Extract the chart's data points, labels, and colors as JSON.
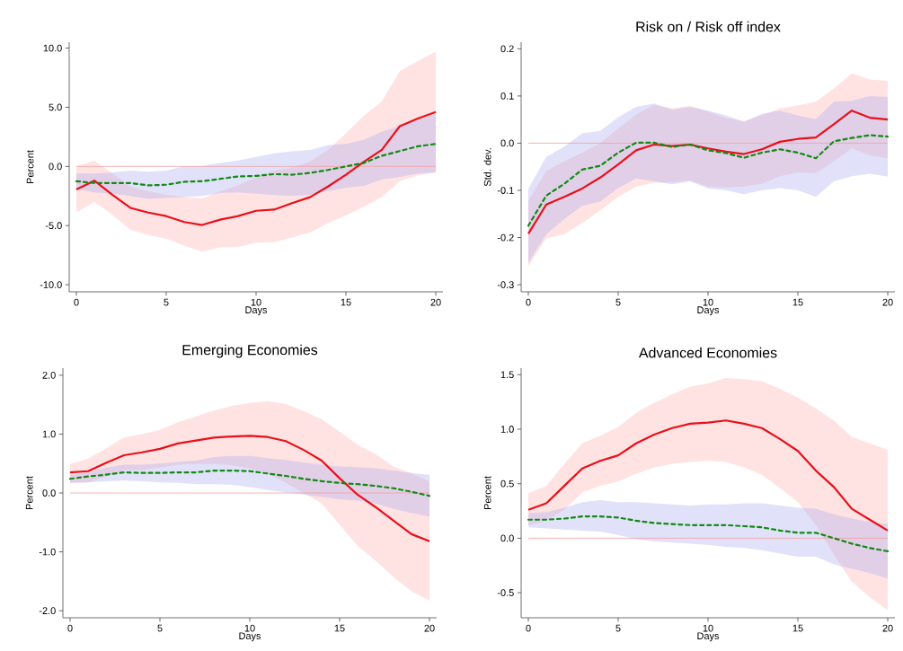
{
  "chart_data": [
    {
      "type": "line",
      "xlabel": "Days",
      "ylabel": "Percent",
      "xlim": [
        -0.4,
        20.4
      ],
      "ylim": [
        -10.6,
        10.5
      ],
      "xticks": [
        0,
        5,
        10,
        15,
        20
      ],
      "yticks": [
        {
          "value": -10,
          "label": "-10.0"
        },
        {
          "value": -5,
          "label": "-5.0"
        },
        {
          "value": 0,
          "label": "0.0"
        },
        {
          "value": 5,
          "label": "5.0"
        },
        {
          "value": 10,
          "label": "10.0"
        }
      ],
      "ref_lines": [
        {
          "axis": "y",
          "value": 0,
          "color": "#f4a0a0"
        }
      ],
      "x": [
        0,
        1,
        2,
        3,
        4,
        5,
        6,
        7,
        8,
        9,
        10,
        11,
        12,
        13,
        14,
        15,
        16,
        17,
        18,
        19,
        20
      ],
      "series": [
        {
          "color": "#e8101a",
          "line_style": "solid",
          "values": [
            -1.95,
            -1.2,
            -2.4,
            -3.5,
            -3.9,
            -4.2,
            -4.7,
            -4.95,
            -4.5,
            -4.2,
            -3.75,
            -3.65,
            -3.1,
            -2.6,
            -1.7,
            -0.7,
            0.4,
            1.4,
            3.4,
            4.05,
            4.6
          ],
          "upper": [
            0,
            0.5,
            -0.6,
            -1.7,
            -2.1,
            -2.4,
            -2.6,
            -2.7,
            -2.1,
            -1.6,
            -0.9,
            -0.35,
            -0.1,
            0.4,
            1.4,
            2.8,
            4.3,
            5.5,
            8.05,
            8.9,
            9.7
          ],
          "lower": [
            -3.9,
            -3.0,
            -4.1,
            -5.35,
            -5.8,
            -6.1,
            -6.7,
            -7.2,
            -6.85,
            -6.8,
            -6.45,
            -6.4,
            -6.0,
            -5.6,
            -4.8,
            -4.15,
            -3.4,
            -2.6,
            -1.25,
            -0.75,
            -0.5
          ]
        },
        {
          "color": "#128a12",
          "line_style": "dashed",
          "values": [
            -1.25,
            -1.4,
            -1.4,
            -1.4,
            -1.6,
            -1.55,
            -1.3,
            -1.25,
            -1.05,
            -0.85,
            -0.8,
            -0.65,
            -0.7,
            -0.55,
            -0.3,
            0,
            0.3,
            0.9,
            1.3,
            1.7,
            1.9
          ],
          "upper": [
            -0.6,
            -0.6,
            -0.5,
            -0.35,
            -0.45,
            -0.35,
            0,
            0.05,
            0.3,
            0.5,
            0.8,
            1.1,
            1.27,
            1.4,
            1.8,
            1.9,
            2.25,
            2.95,
            3.4,
            3.95,
            4.45
          ],
          "lower": [
            -1.9,
            -2.2,
            -2.3,
            -2.5,
            -2.75,
            -2.65,
            -2.6,
            -2.5,
            -2.25,
            -2.2,
            -2.3,
            -2.42,
            -2.5,
            -2.4,
            -2.1,
            -1.8,
            -1.65,
            -1.1,
            -0.88,
            -0.6,
            -0.5
          ]
        }
      ]
    },
    {
      "type": "line",
      "title": "Risk on / Risk off index",
      "xlabel": "Days",
      "ylabel": "Std. dev.",
      "xlim": [
        -0.4,
        20.4
      ],
      "ylim": [
        -0.315,
        0.214
      ],
      "xticks": [
        0,
        5,
        10,
        15,
        20
      ],
      "yticks": [
        -0.3,
        -0.2,
        -0.1,
        {
          "value": 0,
          "label": "0.0"
        },
        0.1,
        0.2
      ],
      "ref_lines": [
        {
          "axis": "y",
          "value": 0,
          "color": "#f4a0a0"
        }
      ],
      "x": [
        0,
        1,
        2,
        3,
        4,
        5,
        6,
        7,
        8,
        9,
        10,
        11,
        12,
        13,
        14,
        15,
        16,
        17,
        18,
        19,
        20
      ],
      "series": [
        {
          "color": "#e8101a",
          "line_style": "solid",
          "values": [
            -0.192,
            -0.13,
            -0.114,
            -0.096,
            -0.073,
            -0.045,
            -0.015,
            -0.003,
            -0.006,
            -0.003,
            -0.011,
            -0.018,
            -0.023,
            -0.013,
            0.003,
            0.009,
            0.012,
            0.04,
            0.069,
            0.054,
            0.05
          ],
          "upper": [
            -0.122,
            -0.059,
            -0.038,
            -0.02,
            0,
            0.031,
            0.061,
            0.081,
            0.074,
            0.079,
            0.067,
            0.053,
            0.047,
            0.059,
            0.074,
            0.08,
            0.088,
            0.116,
            0.148,
            0.135,
            0.132
          ],
          "lower": [
            -0.261,
            -0.202,
            -0.193,
            -0.169,
            -0.143,
            -0.114,
            -0.092,
            -0.084,
            -0.083,
            -0.079,
            -0.092,
            -0.094,
            -0.092,
            -0.086,
            -0.07,
            -0.062,
            -0.064,
            -0.038,
            -0.011,
            -0.026,
            -0.032
          ]
        },
        {
          "color": "#128a12",
          "line_style": "dashed",
          "values": [
            -0.175,
            -0.111,
            -0.086,
            -0.056,
            -0.048,
            -0.02,
            0.001,
            0.001,
            -0.008,
            -0.003,
            -0.015,
            -0.021,
            -0.031,
            -0.02,
            -0.013,
            -0.02,
            -0.032,
            0.004,
            0.011,
            0.017,
            0.014
          ],
          "upper": [
            -0.096,
            -0.029,
            -0.007,
            0.021,
            0.026,
            0.055,
            0.077,
            0.084,
            0.071,
            0.077,
            0.069,
            0.059,
            0.045,
            0.062,
            0.069,
            0.059,
            0.051,
            0.088,
            0.09,
            0.1,
            0.098
          ],
          "lower": [
            -0.253,
            -0.193,
            -0.161,
            -0.133,
            -0.124,
            -0.095,
            -0.075,
            -0.081,
            -0.087,
            -0.081,
            -0.096,
            -0.1,
            -0.108,
            -0.1,
            -0.095,
            -0.1,
            -0.114,
            -0.081,
            -0.07,
            -0.065,
            -0.071
          ]
        }
      ]
    },
    {
      "type": "line",
      "title": "Emerging Economies",
      "xlabel": "Days",
      "ylabel": "Percent",
      "xlim": [
        -0.4,
        20.4
      ],
      "ylim": [
        -2.12,
        2.12
      ],
      "xticks": [
        0,
        5,
        10,
        15,
        20
      ],
      "yticks": [
        {
          "value": -2,
          "label": "-2.0"
        },
        {
          "value": -1,
          "label": "-1.0"
        },
        {
          "value": 0,
          "label": "0.0"
        },
        {
          "value": 1,
          "label": "1.0"
        },
        {
          "value": 2,
          "label": "2.0"
        }
      ],
      "ref_lines": [
        {
          "axis": "y",
          "value": 0,
          "color": "#f4a0a0"
        }
      ],
      "x": [
        0,
        1,
        2,
        3,
        4,
        5,
        6,
        7,
        8,
        9,
        10,
        11,
        12,
        13,
        14,
        15,
        16,
        17,
        18,
        19,
        20
      ],
      "series": [
        {
          "color": "#e8101a",
          "line_style": "solid",
          "values": [
            0.35,
            0.37,
            0.51,
            0.64,
            0.69,
            0.75,
            0.84,
            0.89,
            0.94,
            0.96,
            0.97,
            0.95,
            0.88,
            0.73,
            0.55,
            0.25,
            -0.03,
            -0.24,
            -0.47,
            -0.7,
            -0.82
          ],
          "upper": [
            0.49,
            0.58,
            0.76,
            0.94,
            1.0,
            1.07,
            1.2,
            1.3,
            1.4,
            1.48,
            1.53,
            1.56,
            1.51,
            1.39,
            1.25,
            1.04,
            0.82,
            0.66,
            0.45,
            0.33,
            0.2
          ],
          "lower": [
            0.17,
            0.18,
            0.28,
            0.39,
            0.39,
            0.43,
            0.48,
            0.49,
            0.49,
            0.47,
            0.42,
            0.33,
            0.17,
            0,
            -0.18,
            -0.54,
            -0.9,
            -1.15,
            -1.43,
            -1.67,
            -1.83
          ]
        },
        {
          "color": "#128a12",
          "line_style": "dashed",
          "values": [
            0.24,
            0.28,
            0.31,
            0.35,
            0.34,
            0.34,
            0.35,
            0.35,
            0.38,
            0.38,
            0.37,
            0.33,
            0.29,
            0.24,
            0.2,
            0.17,
            0.15,
            0.12,
            0.08,
            0.02,
            -0.05
          ],
          "upper": [
            0.3,
            0.35,
            0.43,
            0.48,
            0.48,
            0.5,
            0.53,
            0.55,
            0.61,
            0.63,
            0.63,
            0.59,
            0.56,
            0.52,
            0.48,
            0.45,
            0.44,
            0.42,
            0.38,
            0.34,
            0.31
          ],
          "lower": [
            0.17,
            0.18,
            0.2,
            0.21,
            0.2,
            0.18,
            0.17,
            0.15,
            0.15,
            0.14,
            0.1,
            0.05,
            0.01,
            -0.03,
            -0.07,
            -0.11,
            -0.13,
            -0.18,
            -0.27,
            -0.34,
            -0.4
          ]
        }
      ]
    },
    {
      "type": "line",
      "title": "Advanced Economies",
      "xlabel": "Days",
      "ylabel": "Percent",
      "xlim": [
        -0.4,
        20.4
      ],
      "ylim": [
        -0.73,
        1.56
      ],
      "xticks": [
        0,
        5,
        10,
        15,
        20
      ],
      "yticks": [
        -0.5,
        {
          "value": 0,
          "label": "0.0"
        },
        0.5,
        {
          "value": 1,
          "label": "1.0"
        },
        1.5
      ],
      "ref_lines": [
        {
          "axis": "y",
          "value": 0,
          "color": "#f4a0a0"
        }
      ],
      "x": [
        0,
        1,
        2,
        3,
        4,
        5,
        6,
        7,
        8,
        9,
        10,
        11,
        12,
        13,
        14,
        15,
        16,
        17,
        18,
        19,
        20
      ],
      "series": [
        {
          "color": "#e8101a",
          "line_style": "solid",
          "values": [
            0.26,
            0.32,
            0.48,
            0.64,
            0.71,
            0.76,
            0.87,
            0.95,
            1.01,
            1.05,
            1.06,
            1.08,
            1.05,
            1.01,
            0.91,
            0.8,
            0.62,
            0.47,
            0.27,
            0.17,
            0.07
          ],
          "upper": [
            0.41,
            0.48,
            0.68,
            0.87,
            0.94,
            1.02,
            1.15,
            1.24,
            1.32,
            1.39,
            1.42,
            1.47,
            1.46,
            1.44,
            1.37,
            1.29,
            1.19,
            1.08,
            0.93,
            0.87,
            0.81
          ],
          "lower": [
            0.12,
            0.16,
            0.26,
            0.42,
            0.48,
            0.52,
            0.59,
            0.65,
            0.68,
            0.7,
            0.71,
            0.7,
            0.65,
            0.58,
            0.46,
            0.33,
            0.12,
            -0.15,
            -0.4,
            -0.54,
            -0.66
          ]
        },
        {
          "color": "#128a12",
          "line_style": "dashed",
          "values": [
            0.17,
            0.17,
            0.18,
            0.2,
            0.2,
            0.19,
            0.16,
            0.14,
            0.13,
            0.12,
            0.12,
            0.12,
            0.11,
            0.1,
            0.07,
            0.05,
            0.05,
            0,
            -0.05,
            -0.09,
            -0.12
          ],
          "upper": [
            0.23,
            0.24,
            0.28,
            0.33,
            0.35,
            0.33,
            0.33,
            0.32,
            0.31,
            0.3,
            0.31,
            0.31,
            0.32,
            0.32,
            0.3,
            0.28,
            0.27,
            0.22,
            0.18,
            0.15,
            0.13
          ],
          "lower": [
            0.1,
            0.09,
            0.08,
            0.07,
            0.06,
            0.03,
            -0.01,
            -0.03,
            -0.04,
            -0.05,
            -0.06,
            -0.08,
            -0.09,
            -0.11,
            -0.14,
            -0.17,
            -0.17,
            -0.24,
            -0.28,
            -0.32,
            -0.37
          ]
        }
      ]
    }
  ]
}
